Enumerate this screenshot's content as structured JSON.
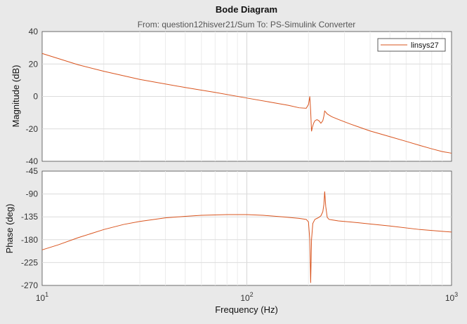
{
  "chart_data": {
    "type": "line",
    "title": "Bode Diagram",
    "subtitle": "From: question12hisver21/Sum  To: PS-Simulink Converter",
    "xlabel": "Frequency  (Hz)",
    "xscale": "log",
    "xlim": [
      10,
      1000
    ],
    "x_ticks": [
      {
        "base": "10",
        "exp": "1"
      },
      {
        "base": "10",
        "exp": "2"
      },
      {
        "base": "10",
        "exp": "3"
      }
    ],
    "grid": true,
    "legend": {
      "position": "top-right",
      "entries": [
        "linsys27"
      ]
    },
    "line_color": "#d9541e",
    "panels": [
      {
        "ylabel": "Magnitude (dB)",
        "ylim": [
          -40,
          40
        ],
        "y_ticks": [
          "40",
          "20",
          "0",
          "-20",
          "-40"
        ],
        "series": [
          {
            "name": "linsys27",
            "x": [
              10,
              15,
              20,
              30,
              50,
              70,
              100,
              130,
              160,
              180,
              195,
              200,
              203,
              205,
              207,
              209,
              212,
              215,
              220,
              225,
              230,
              235,
              238,
              240,
              243,
              247,
              252,
              260,
              280,
              320,
              400,
              500,
              600,
              700,
              800,
              900,
              1000
            ],
            "values": [
              26.5,
              19.5,
              15.5,
              10.5,
              5.5,
              2.5,
              -1.0,
              -3.5,
              -5.5,
              -7.0,
              -7.3,
              -5.0,
              0.0,
              -9.0,
              -21.5,
              -19.0,
              -16.5,
              -15.0,
              -14.3,
              -15.0,
              -16.5,
              -15.0,
              -12.0,
              -9.0,
              -9.7,
              -10.8,
              -11.5,
              -12.5,
              -14.2,
              -17.0,
              -21.3,
              -24.8,
              -27.7,
              -30.2,
              -32.3,
              -34.0,
              -35.0
            ]
          }
        ]
      },
      {
        "ylabel": "Phase (deg)",
        "ylim": [
          -270,
          -45
        ],
        "y_ticks": [
          "-45",
          "-90",
          "-135",
          "-180",
          "-225",
          "-270"
        ],
        "series": [
          {
            "name": "linsys27",
            "x": [
              10,
              12,
              15,
              20,
              25,
              30,
              40,
              50,
              60,
              80,
              100,
              120,
              150,
              180,
              195,
              200,
              203,
              205,
              207,
              210,
              215,
              220,
              225,
              230,
              235,
              238,
              240,
              243,
              247,
              252,
              260,
              280,
              320,
              400,
              500,
              700,
              1000
            ],
            "values": [
              -200,
              -190,
              -176,
              -160,
              -150,
              -144,
              -137,
              -134,
              -132,
              -130.5,
              -130.5,
              -132,
              -135,
              -138,
              -140,
              -145,
              -180,
              -265,
              -180,
              -148,
              -140,
              -138,
              -136,
              -133,
              -125,
              -110,
              -85,
              -115,
              -136,
              -140,
              -141,
              -143,
              -145,
              -149,
              -153,
              -160,
              -165
            ]
          }
        ]
      }
    ]
  }
}
